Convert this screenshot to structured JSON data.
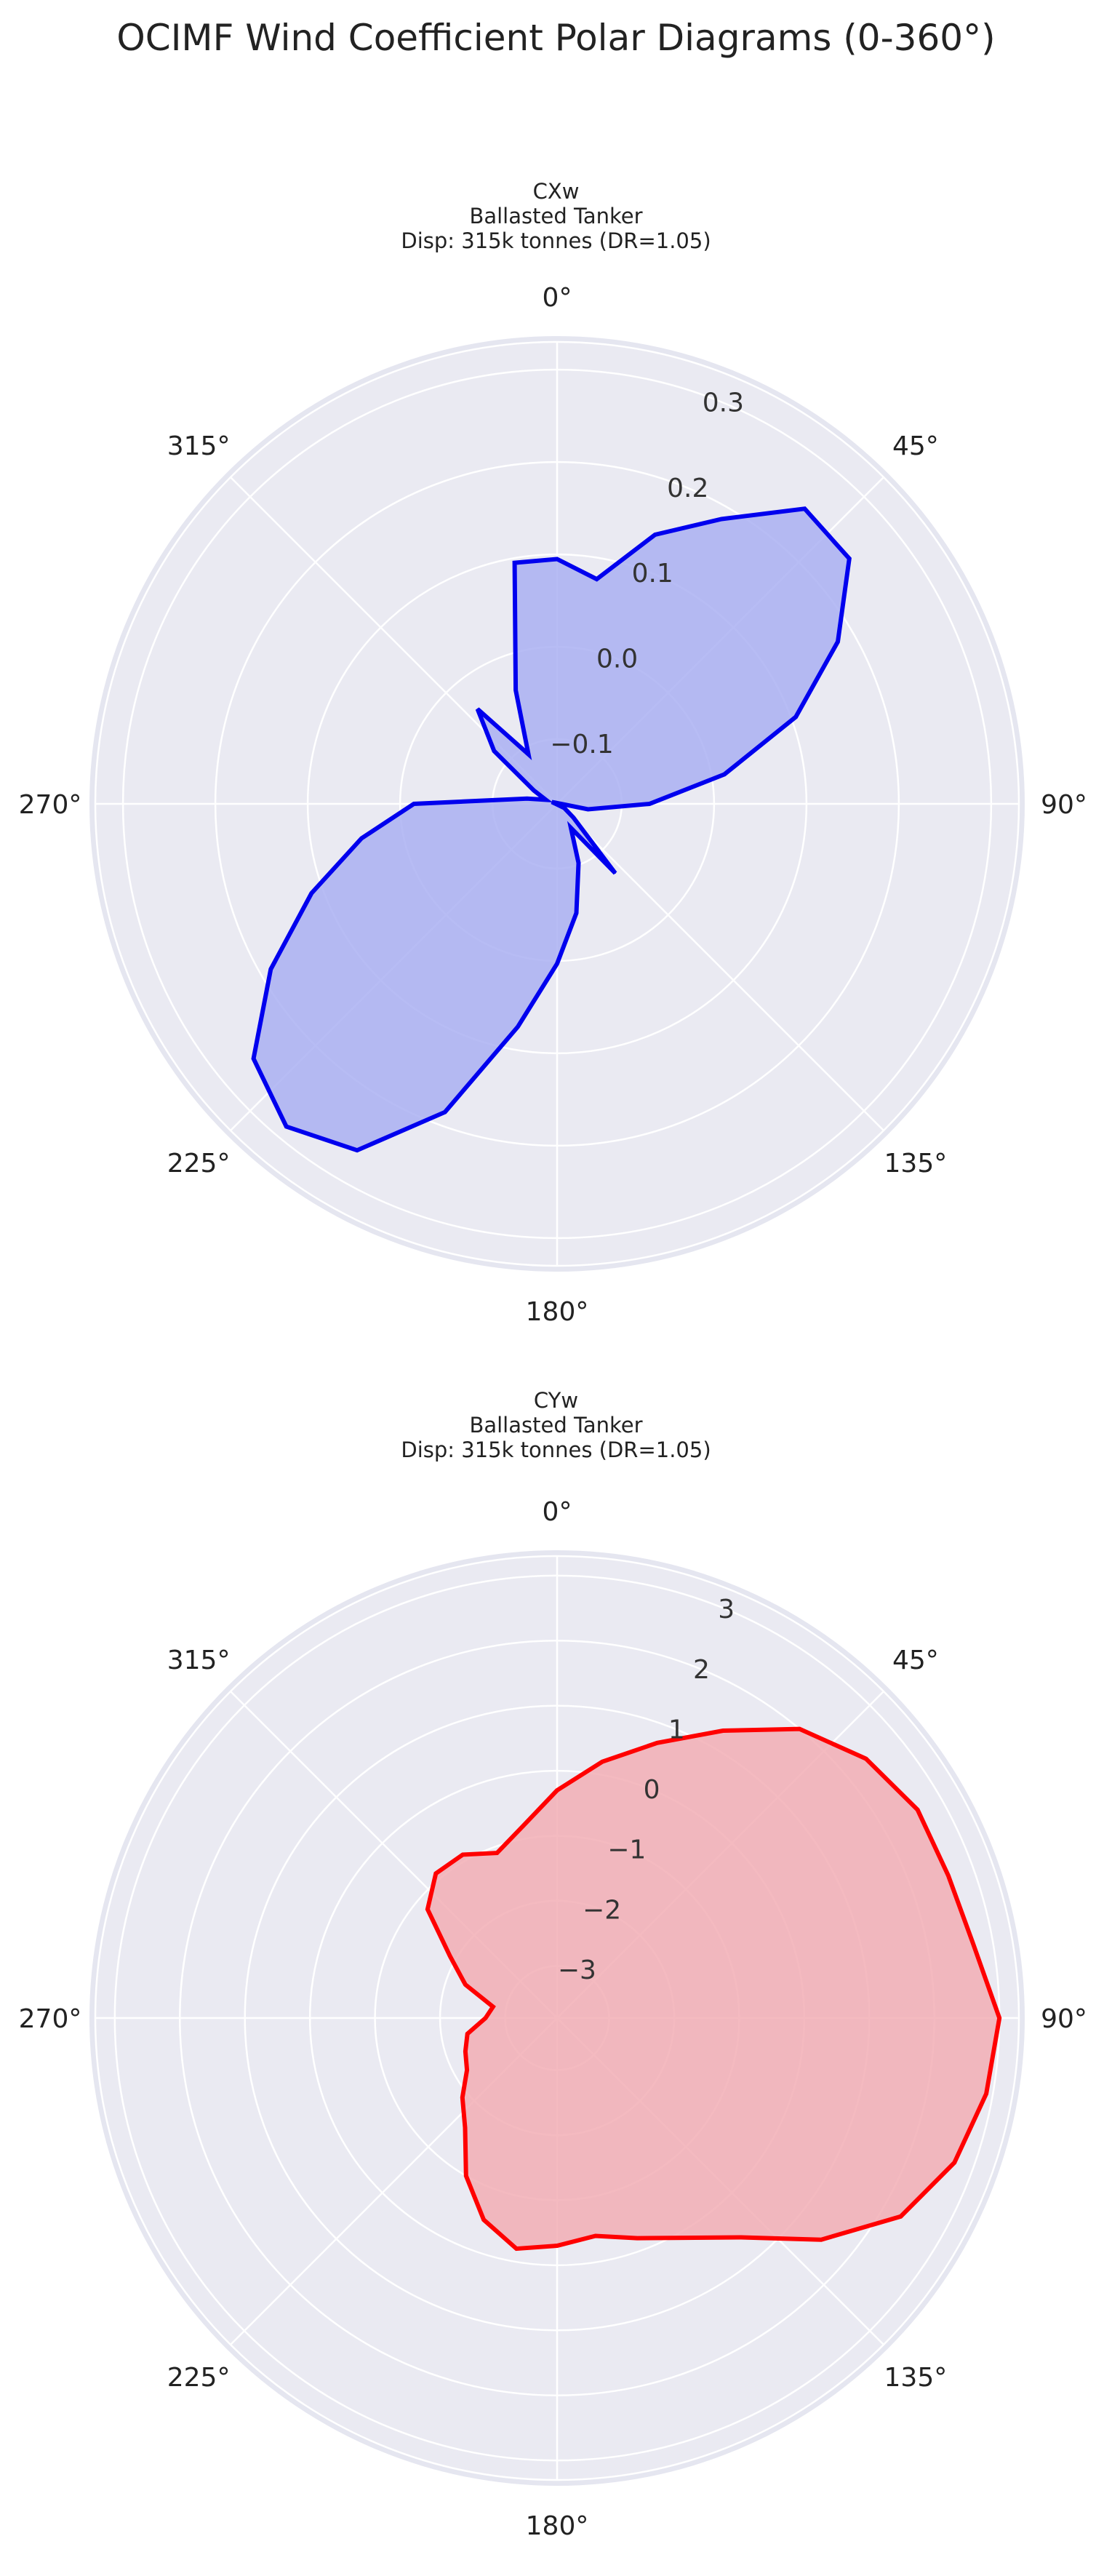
{
  "figure_title": "OCIMF Wind Coefficient Polar Diagrams (0-360°)",
  "chart_data": [
    {
      "type": "polar-area",
      "title": [
        "CXw",
        "Ballasted Tanker",
        "Disp: 315k tonnes (DR=1.05)"
      ],
      "theta_zero": "top",
      "theta_direction": "clockwise",
      "angle_ticks": [
        0,
        45,
        90,
        135,
        180,
        225,
        270,
        315
      ],
      "angle_tick_labels": [
        "0°",
        "45°",
        "90°",
        "135°",
        "180°",
        "225°",
        "270°",
        "315°"
      ],
      "r_range": [
        -0.17,
        0.33
      ],
      "r_ticks": [
        -0.1,
        0.0,
        0.1,
        0.2,
        0.3
      ],
      "r_tick_labels": [
        "−0.1",
        "0.0",
        "0.1",
        "0.2",
        "0.3"
      ],
      "grid": true,
      "line_color": "#0000ee",
      "fill_color": "#aab0f2",
      "angles": [
        0,
        10,
        20,
        30,
        40,
        50,
        60,
        70,
        80,
        90,
        100,
        110,
        120,
        130,
        140,
        150,
        160,
        170,
        180,
        190,
        200,
        210,
        220,
        230,
        240,
        250,
        260,
        270,
        280,
        290,
        300,
        310,
        320,
        330,
        340,
        350,
        360
      ],
      "values": [
        0.095,
        0.077,
        0.14,
        0.186,
        0.247,
        0.243,
        0.181,
        0.105,
        0.014,
        -0.07,
        -0.136,
        -0.176,
        -0.161,
        -0.147,
        -0.072,
        -0.14,
        -0.102,
        -0.05,
        0.003,
        0.075,
        0.185,
        0.263,
        0.286,
        0.259,
        0.188,
        0.113,
        0.045,
        -0.015,
        -0.137,
        -0.157,
        -0.141,
        -0.081,
        -0.036,
        -0.108,
        -0.039,
        0.095,
        0.095
      ]
    },
    {
      "type": "polar-area",
      "title": [
        "CYw",
        "Ballasted Tanker",
        "Disp: 315k tonnes (DR=1.05)"
      ],
      "theta_zero": "top",
      "theta_direction": "clockwise",
      "angle_ticks": [
        0,
        45,
        90,
        135,
        180,
        225,
        270,
        315
      ],
      "angle_tick_labels": [
        "0°",
        "45°",
        "90°",
        "135°",
        "180°",
        "225°",
        "270°",
        "315°"
      ],
      "r_range": [
        -3.8,
        3.3
      ],
      "r_ticks": [
        -3,
        -2,
        -1,
        0,
        1,
        2,
        3
      ],
      "r_tick_labels": [
        "−3",
        "−2",
        "−1",
        "0",
        "1",
        "2",
        "3"
      ],
      "grid": true,
      "line_color": "#ff0000",
      "fill_color": "#f2aeb5",
      "angles": [
        0,
        10,
        20,
        30,
        40,
        50,
        60,
        70,
        80,
        90,
        100,
        110,
        120,
        130,
        140,
        150,
        160,
        170,
        180,
        190,
        200,
        210,
        220,
        230,
        240,
        250,
        260,
        270,
        280,
        290,
        300,
        310,
        320,
        330,
        340,
        350,
        360
      ],
      "values": [
        -0.3,
        0.2,
        0.7,
        1.3,
        2.0,
        2.4,
        2.6,
        2.6,
        2.7,
        3.0,
        2.9,
        2.7,
        2.3,
        1.5,
        0.6,
        0.1,
        -0.2,
        -0.4,
        -0.3,
        -0.2,
        -0.5,
        -1.0,
        -1.6,
        -1.9,
        -2.2,
        -2.3,
        -2.4,
        -2.7,
        -2.8,
        -2.3,
        -1.9,
        -1.2,
        -0.9,
        -0.9,
        -1.1,
        -0.8,
        -0.3
      ]
    }
  ]
}
